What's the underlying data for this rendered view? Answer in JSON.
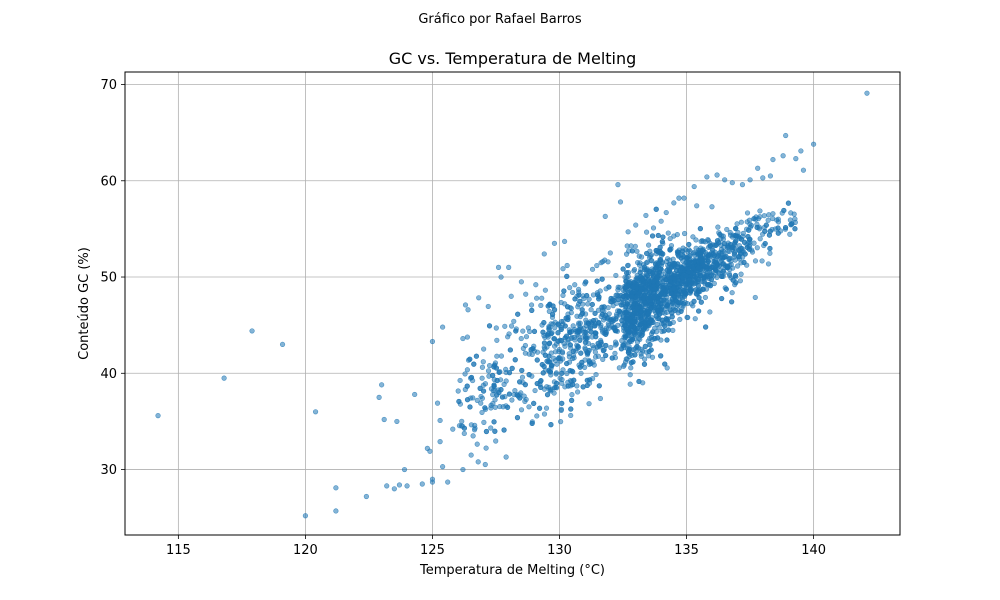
{
  "figure": {
    "suptitle": "Gráfico por Rafael Barros"
  },
  "chart_data": {
    "type": "scatter",
    "title": "GC vs. Temperatura de Melting",
    "xlabel": "Temperatura de Melting (°C)",
    "ylabel": "Conteúdo GC (%)",
    "xlim": [
      112.9,
      143.4
    ],
    "ylim": [
      23.2,
      71.3
    ],
    "xticks": [
      115,
      120,
      125,
      130,
      135,
      140
    ],
    "yticks": [
      30,
      40,
      50,
      60,
      70
    ],
    "grid": true,
    "legend": "none",
    "colors": {
      "points": "#1f77b4",
      "grid": "#b0b0b0",
      "axes": "#000000"
    },
    "trend": {
      "approx_relation": "GC ≈ 1.45 × (Tm − 100.4)",
      "point_count_estimate": 2500
    },
    "series": [
      {
        "points": [
          [
            114.2,
            35.6
          ],
          [
            116.8,
            39.5
          ],
          [
            117.9,
            44.4
          ],
          [
            119.1,
            43.0
          ],
          [
            120.0,
            25.2
          ],
          [
            120.4,
            36.0
          ],
          [
            121.2,
            28.1
          ],
          [
            121.2,
            25.7
          ],
          [
            122.4,
            27.2
          ],
          [
            123.0,
            38.8
          ],
          [
            122.9,
            37.5
          ],
          [
            123.1,
            35.2
          ],
          [
            123.2,
            28.3
          ],
          [
            123.5,
            28.0
          ],
          [
            123.6,
            35.0
          ],
          [
            123.7,
            28.4
          ],
          [
            123.9,
            30.0
          ],
          [
            124.0,
            28.3
          ],
          [
            124.3,
            37.8
          ],
          [
            124.6,
            28.5
          ],
          [
            124.8,
            32.2
          ],
          [
            124.9,
            31.9
          ],
          [
            125.0,
            43.3
          ],
          [
            125.0,
            29.0
          ],
          [
            125.0,
            28.7
          ],
          [
            125.2,
            36.9
          ],
          [
            125.3,
            35.1
          ],
          [
            125.3,
            32.9
          ],
          [
            125.4,
            30.3
          ],
          [
            125.4,
            44.8
          ],
          [
            125.6,
            28.7
          ],
          [
            125.8,
            34.2
          ],
          [
            126.1,
            36.8
          ],
          [
            126.2,
            30.0
          ],
          [
            126.3,
            47.1
          ],
          [
            126.4,
            46.6
          ],
          [
            126.5,
            39.5
          ],
          [
            126.6,
            33.5
          ],
          [
            126.8,
            30.8
          ],
          [
            126.9,
            36.9
          ],
          [
            127.0,
            41.2
          ],
          [
            127.3,
            36.4
          ],
          [
            127.4,
            38.2
          ],
          [
            127.6,
            51.0
          ],
          [
            127.7,
            50.0
          ],
          [
            127.9,
            39.2
          ],
          [
            128.0,
            51.0
          ],
          [
            128.1,
            48.0
          ],
          [
            128.2,
            45.4
          ],
          [
            128.3,
            44.6
          ],
          [
            128.5,
            49.5
          ],
          [
            128.7,
            43.8
          ],
          [
            128.9,
            47.1
          ],
          [
            129.1,
            47.8
          ],
          [
            129.3,
            47.8
          ],
          [
            129.4,
            52.4
          ],
          [
            129.8,
            53.5
          ],
          [
            130.2,
            53.7
          ],
          [
            130.3,
            51.2
          ],
          [
            130.4,
            48.9
          ],
          [
            130.6,
            49.2
          ],
          [
            131.0,
            49.3
          ],
          [
            131.3,
            50.8
          ],
          [
            131.7,
            51.6
          ],
          [
            131.8,
            56.3
          ],
          [
            132.0,
            52.5
          ],
          [
            132.3,
            59.6
          ],
          [
            132.4,
            57.8
          ],
          [
            132.7,
            54.7
          ],
          [
            133.0,
            55.4
          ],
          [
            133.4,
            56.4
          ],
          [
            133.7,
            55.1
          ],
          [
            134.0,
            55.8
          ],
          [
            134.2,
            56.7
          ],
          [
            134.5,
            57.7
          ],
          [
            134.7,
            58.2
          ],
          [
            134.9,
            58.2
          ],
          [
            135.3,
            59.4
          ],
          [
            135.4,
            57.4
          ],
          [
            135.8,
            60.4
          ],
          [
            136.0,
            57.3
          ],
          [
            136.2,
            60.6
          ],
          [
            136.5,
            60.1
          ],
          [
            136.8,
            59.8
          ],
          [
            137.2,
            59.6
          ],
          [
            137.5,
            60.1
          ],
          [
            137.8,
            61.3
          ],
          [
            138.0,
            60.3
          ],
          [
            138.3,
            60.5
          ],
          [
            138.4,
            62.2
          ],
          [
            138.8,
            62.6
          ],
          [
            138.9,
            64.7
          ],
          [
            139.3,
            62.3
          ],
          [
            139.5,
            63.1
          ],
          [
            139.6,
            61.1
          ],
          [
            140.0,
            63.8
          ],
          [
            142.1,
            69.1
          ]
        ],
        "density_note": "dense band of points following the trend between ~126 and ~139 °C"
      }
    ]
  }
}
